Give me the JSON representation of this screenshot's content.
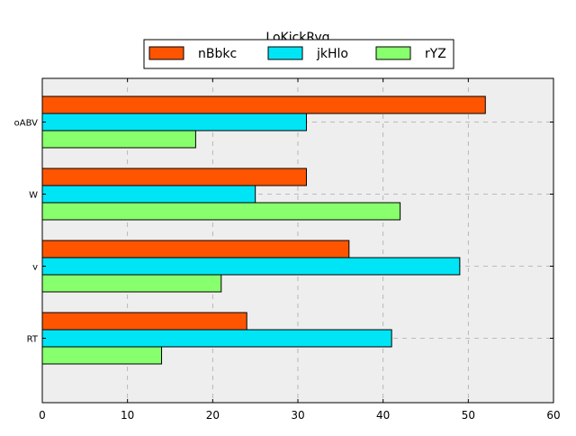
{
  "chart_data": {
    "type": "bar",
    "orientation": "horizontal",
    "title": "LoKickRyq",
    "xlabel": "",
    "ylabel": "",
    "categories": [
      "oABV",
      "W",
      "v",
      "RT"
    ],
    "series": [
      {
        "name": "nBbkc",
        "color": "#ff5500",
        "values": [
          52,
          31,
          36,
          24
        ]
      },
      {
        "name": "jkHlo",
        "color": "#00e5f5",
        "values": [
          31,
          25,
          49,
          41
        ]
      },
      {
        "name": "rYZ",
        "color": "#88ff6d",
        "values": [
          18,
          42,
          21,
          14
        ]
      }
    ],
    "xlim": [
      0,
      60
    ],
    "xticks": [
      0,
      10,
      20,
      30,
      40,
      50,
      60
    ],
    "grid": true,
    "legend_position": "top-center",
    "background_color": "#eeeeee"
  }
}
